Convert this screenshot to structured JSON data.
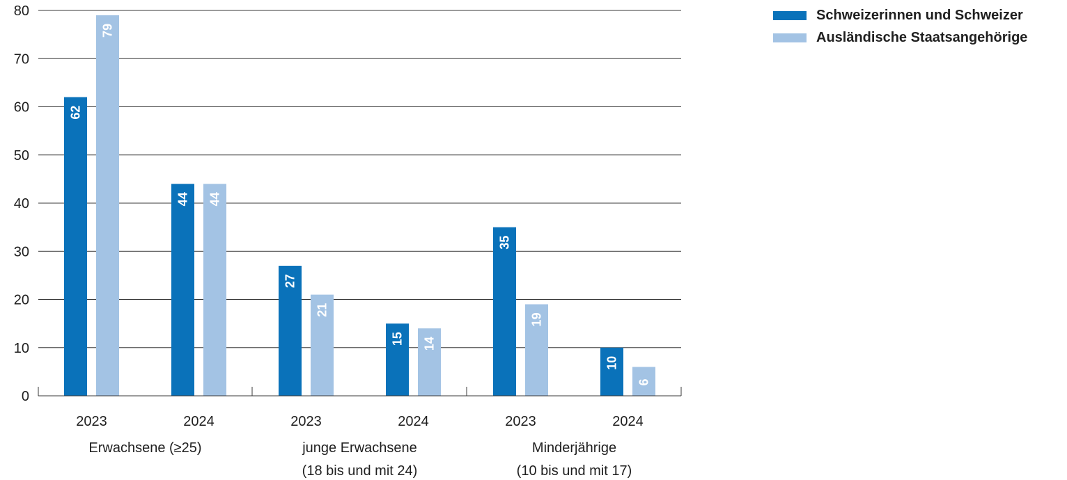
{
  "chart_data": {
    "type": "bar",
    "title": "",
    "xlabel": "",
    "ylabel": "",
    "ylim": [
      0,
      80
    ],
    "yticks": [
      0,
      10,
      20,
      30,
      40,
      50,
      60,
      70,
      80
    ],
    "grid": true,
    "legend_position": "top-right",
    "groups": [
      {
        "label_lines": [
          "Erwachsene (≥25)"
        ],
        "years": [
          "2023",
          "2024"
        ]
      },
      {
        "label_lines": [
          "junge Erwachsene",
          "(18 bis und mit 24)"
        ],
        "years": [
          "2023",
          "2024"
        ]
      },
      {
        "label_lines": [
          "Minderjährige",
          "(10 bis und mit 17)"
        ],
        "years": [
          "2023",
          "2024"
        ]
      }
    ],
    "categories": [
      "Erwachsene (≥25) 2023",
      "Erwachsene (≥25) 2024",
      "junge Erwachsene (18 bis und mit 24) 2023",
      "junge Erwachsene (18 bis und mit 24) 2024",
      "Minderjährige (10 bis und mit 17) 2023",
      "Minderjährige (10 bis und mit 17) 2024"
    ],
    "series": [
      {
        "name": "Schweizerinnen und Schweizer",
        "color": "#0a72ba",
        "values": [
          62,
          44,
          27,
          15,
          35,
          10
        ]
      },
      {
        "name": "Ausländische Staatsangehörige",
        "color": "#a3c3e4",
        "values": [
          79,
          44,
          21,
          14,
          19,
          6
        ]
      }
    ]
  }
}
